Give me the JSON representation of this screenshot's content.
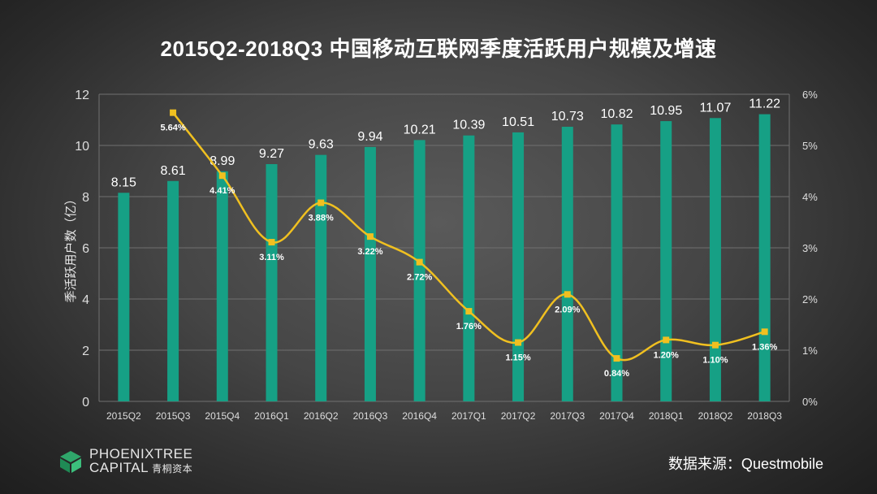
{
  "title": "2015Q2-2018Q3  中国移动互联网季度活跃用户规模及增速",
  "source": "数据来源：Questmobile",
  "brand": {
    "line1": "PHOENIXTREE",
    "line2": "CAPITAL",
    "line2_cn": "青桐资本"
  },
  "colors": {
    "bar": "#16a085",
    "line": "#f0c020",
    "axis_text": "#dddddd",
    "grid": "#707070"
  },
  "chart_data": {
    "type": "bar+line",
    "categories": [
      "2015Q2",
      "2015Q3",
      "2015Q4",
      "2016Q1",
      "2016Q2",
      "2016Q3",
      "2016Q4",
      "2017Q1",
      "2017Q2",
      "2017Q3",
      "2017Q4",
      "2018Q1",
      "2018Q2",
      "2018Q3"
    ],
    "bar_values": [
      8.15,
      8.61,
      8.99,
      9.27,
      9.63,
      9.94,
      10.21,
      10.39,
      10.51,
      10.73,
      10.82,
      10.95,
      11.07,
      11.22
    ],
    "bar_labels": [
      "8.15",
      "8.61",
      "8.99",
      "9.27",
      "9.63",
      "9.94",
      "10.21",
      "10.39",
      "10.51",
      "10.73",
      "10.82",
      "10.95",
      "11.07",
      "11.22"
    ],
    "growth_values": [
      null,
      5.64,
      4.41,
      3.11,
      3.88,
      3.22,
      2.72,
      1.76,
      1.15,
      2.09,
      0.84,
      1.2,
      1.1,
      1.36
    ],
    "growth_labels": [
      null,
      "5.64%",
      "4.41%",
      "3.11%",
      "3.88%",
      "3.22%",
      "2.72%",
      "1.76%",
      "1.15%",
      "2.09%",
      "0.84%",
      "1.20%",
      "1.10%",
      "1.36%"
    ],
    "ylabel": "季活跃用户数（亿）",
    "y_left_ticks": [
      "0",
      "2",
      "4",
      "6",
      "8",
      "10",
      "12"
    ],
    "y_left_lim": [
      0,
      12
    ],
    "y_right_ticks": [
      "0%",
      "1%",
      "2%",
      "3%",
      "4%",
      "5%",
      "6%"
    ],
    "y_right_lim": [
      0,
      6
    ],
    "grid": true
  }
}
